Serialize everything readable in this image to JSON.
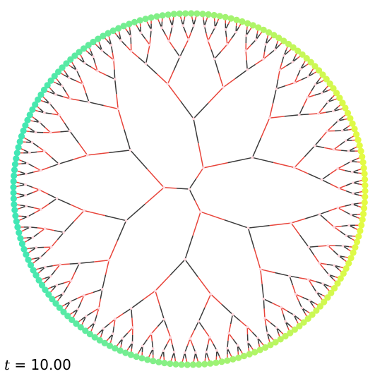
{
  "tree": {
    "depth": 7,
    "top_level_branches": 3,
    "edge_colors": [
      "#e8443a",
      "#3a3a3a"
    ],
    "node_color": "#ffd6dc",
    "leaf_color_start": "#e4fb43",
    "leaf_color_end": "#3fe7b6"
  },
  "time_label": {
    "variable": "t",
    "equals": " = ",
    "value": "10.00"
  }
}
